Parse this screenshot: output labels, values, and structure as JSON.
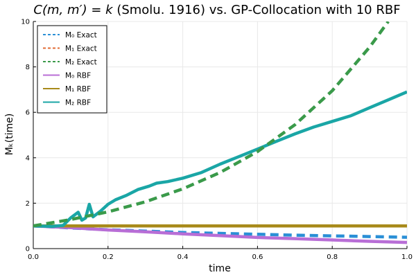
{
  "chart_data": {
    "type": "line",
    "title": "C(m, m′) = k (Smolu. 1916) vs. GP-Collocation with 10 RBF",
    "title_parts": {
      "math": "C(m, m′) = k",
      "text": " (Smolu. 1916) vs. GP-Collocation with 10 RBF"
    },
    "xlabel": "time",
    "ylabel": "Mₖ(time)",
    "xlim": [
      0,
      1
    ],
    "ylim": [
      0,
      10
    ],
    "x_ticks": [
      0.0,
      0.2,
      0.4,
      0.6,
      0.8,
      1.0
    ],
    "x_tick_labels": [
      "0.0",
      "0.2",
      "0.4",
      "0.6",
      "0.8",
      "1.0"
    ],
    "y_ticks": [
      0,
      2,
      4,
      6,
      8,
      10
    ],
    "y_tick_labels": [
      "0",
      "2",
      "4",
      "6",
      "8",
      "10"
    ],
    "grid": true,
    "legend_position": "top-left",
    "series": [
      {
        "name": "M₀ Exact",
        "color": "#2a8fd6",
        "style": "dashed",
        "x": [
          0,
          0.1,
          0.2,
          0.3,
          0.4,
          0.5,
          0.6,
          0.7,
          0.8,
          0.9,
          1.0
        ],
        "y": [
          1.0,
          0.91,
          0.83,
          0.77,
          0.71,
          0.67,
          0.63,
          0.59,
          0.56,
          0.53,
          0.5
        ]
      },
      {
        "name": "M₁ Exact",
        "color": "#e26b33",
        "style": "dashed",
        "x": [
          0,
          0.5,
          1.0
        ],
        "y": [
          1.0,
          1.0,
          1.0
        ]
      },
      {
        "name": "M₂ Exact",
        "color": "#3a9a4a",
        "style": "dashed",
        "x": [
          0,
          0.1,
          0.2,
          0.3,
          0.4,
          0.5,
          0.6,
          0.7,
          0.8,
          0.9,
          0.95
        ],
        "y": [
          1.0,
          1.28,
          1.62,
          2.06,
          2.63,
          3.35,
          4.27,
          5.45,
          6.95,
          8.87,
          10.0
        ]
      },
      {
        "name": "M₀ RBF",
        "color": "#b86ed6",
        "style": "solid",
        "x": [
          0,
          0.1,
          0.2,
          0.3,
          0.4,
          0.5,
          0.6,
          0.7,
          0.8,
          0.9,
          1.0
        ],
        "y": [
          1.0,
          0.92,
          0.82,
          0.74,
          0.65,
          0.57,
          0.49,
          0.44,
          0.38,
          0.32,
          0.27
        ]
      },
      {
        "name": "M₁ RBF",
        "color": "#a88a1a",
        "style": "solid",
        "x": [
          0,
          0.5,
          1.0
        ],
        "y": [
          1.0,
          1.0,
          1.0
        ]
      },
      {
        "name": "M₂ RBF",
        "color": "#1aa6a6",
        "style": "solid",
        "x": [
          0,
          0.05,
          0.08,
          0.1,
          0.12,
          0.13,
          0.14,
          0.15,
          0.16,
          0.18,
          0.2,
          0.22,
          0.25,
          0.28,
          0.31,
          0.33,
          0.36,
          0.4,
          0.45,
          0.5,
          0.55,
          0.6,
          0.65,
          0.7,
          0.75,
          0.8,
          0.85,
          0.9,
          0.95,
          1.0
        ],
        "y": [
          1.0,
          0.98,
          1.02,
          1.35,
          1.6,
          1.25,
          1.35,
          1.95,
          1.4,
          1.65,
          1.95,
          2.15,
          2.35,
          2.6,
          2.75,
          2.88,
          2.95,
          3.1,
          3.35,
          3.72,
          4.05,
          4.38,
          4.72,
          5.05,
          5.35,
          5.6,
          5.85,
          6.2,
          6.55,
          6.9
        ]
      }
    ]
  }
}
